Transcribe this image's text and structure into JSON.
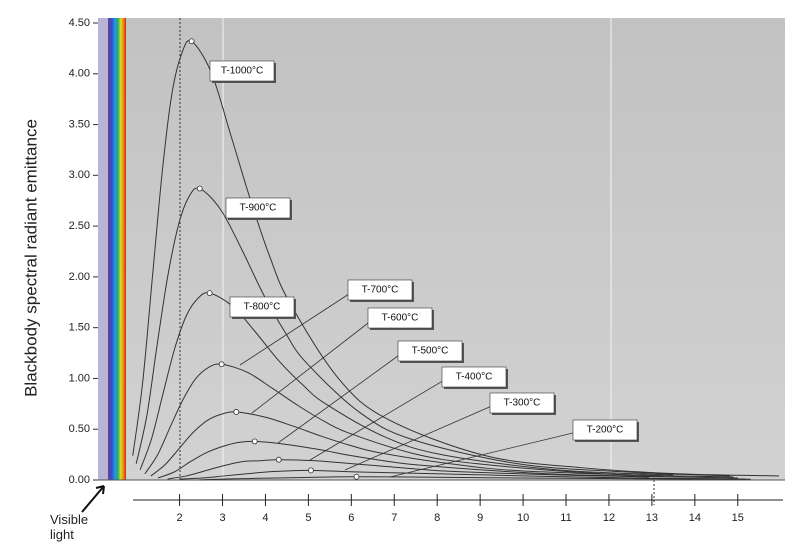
{
  "chart_data": {
    "type": "line",
    "ylabel": "Blackbody spectral radiant emittance",
    "annotation": "Visible light",
    "xlim": [
      0.1,
      16.1
    ],
    "ylim": [
      0,
      4.5
    ],
    "xticks": [
      2,
      3,
      4,
      5,
      6,
      7,
      8,
      9,
      10,
      11,
      12,
      13,
      14,
      15
    ],
    "yticks": [
      {
        "value": 0,
        "label": "0.00"
      },
      {
        "value": 0.5,
        "label": "0.50"
      },
      {
        "value": 1,
        "label": "1.00"
      },
      {
        "value": 1.5,
        "label": "1.50"
      },
      {
        "value": 2,
        "label": "2.00"
      },
      {
        "value": 2.5,
        "label": "2.50"
      },
      {
        "value": 3,
        "label": "3.00"
      },
      {
        "value": 3.5,
        "label": "3.50"
      },
      {
        "value": 4,
        "label": "4.00"
      },
      {
        "value": 4.5,
        "label": "4.50"
      }
    ],
    "color": "#333333",
    "series": [
      {
        "name": "T-1000°C",
        "x": [
          0.91,
          1.14,
          1.37,
          1.6,
          1.82,
          2.05,
          2.28,
          2.74,
          3.19,
          3.65,
          4.1,
          4.56,
          5.7,
          6.84,
          9.12,
          11.4,
          13.68,
          15.96
        ],
        "values": [
          0.24,
          0.96,
          2.01,
          3.05,
          3.8,
          4.2,
          4.32,
          4.01,
          3.4,
          2.76,
          2.2,
          1.75,
          1.0,
          0.6,
          0.24,
          0.12,
          0.06,
          0.04
        ]
      },
      {
        "name": "T-900°C",
        "x": [
          0.99,
          1.24,
          1.48,
          1.73,
          1.98,
          2.22,
          2.47,
          2.96,
          3.46,
          3.95,
          4.45,
          4.94,
          6.18,
          7.41,
          9.88,
          12.35,
          14.82
        ],
        "values": [
          0.16,
          0.64,
          1.34,
          2.02,
          2.52,
          2.79,
          2.87,
          2.66,
          2.26,
          1.83,
          1.46,
          1.16,
          0.67,
          0.4,
          0.16,
          0.08,
          0.04
        ]
      },
      {
        "name": "T-800°C",
        "x": [
          1.08,
          1.35,
          1.62,
          1.89,
          2.16,
          2.43,
          2.7,
          3.24,
          3.78,
          4.32,
          4.86,
          5.4,
          6.75,
          8.1,
          10.8,
          13.5
        ],
        "values": [
          0.1,
          0.41,
          0.86,
          1.3,
          1.62,
          1.79,
          1.84,
          1.71,
          1.45,
          1.17,
          0.94,
          0.75,
          0.43,
          0.25,
          0.1,
          0.05
        ]
      },
      {
        "name": "T-700°C",
        "x": [
          1.19,
          1.49,
          1.79,
          2.09,
          2.38,
          2.68,
          2.98,
          3.58,
          4.17,
          4.77,
          5.36,
          5.96,
          7.45,
          8.94,
          11.92,
          14.9
        ],
        "values": [
          0.06,
          0.25,
          0.53,
          0.8,
          1.0,
          1.11,
          1.14,
          1.06,
          0.9,
          0.73,
          0.58,
          0.46,
          0.26,
          0.16,
          0.06,
          0.03
        ]
      },
      {
        "name": "T-600°C",
        "x": [
          1.33,
          1.66,
          1.99,
          2.32,
          2.66,
          2.99,
          3.32,
          3.98,
          4.65,
          5.31,
          5.98,
          6.64,
          8.3,
          9.96,
          13.28
        ],
        "values": [
          0.04,
          0.15,
          0.31,
          0.47,
          0.59,
          0.65,
          0.67,
          0.62,
          0.53,
          0.43,
          0.34,
          0.27,
          0.16,
          0.09,
          0.04
        ]
      },
      {
        "name": "T-500°C",
        "x": [
          1.5,
          1.88,
          2.25,
          2.63,
          3.0,
          3.38,
          3.75,
          4.5,
          5.25,
          6.0,
          6.75,
          7.5,
          9.38,
          11.25,
          15.0
        ],
        "values": [
          0.02,
          0.08,
          0.18,
          0.27,
          0.33,
          0.37,
          0.38,
          0.35,
          0.3,
          0.24,
          0.19,
          0.15,
          0.09,
          0.05,
          0.02
        ]
      },
      {
        "name": "T-400°C",
        "x": [
          1.72,
          2.16,
          2.59,
          3.02,
          3.45,
          3.88,
          4.31,
          5.17,
          6.03,
          6.9,
          7.76,
          8.62,
          10.78,
          12.93
        ],
        "values": [
          0.01,
          0.04,
          0.09,
          0.14,
          0.18,
          0.19,
          0.2,
          0.19,
          0.16,
          0.13,
          0.1,
          0.08,
          0.05,
          0.03
        ]
      },
      {
        "name": "T-300°C",
        "x": [
          2.02,
          2.53,
          3.04,
          3.54,
          4.05,
          4.55,
          5.06,
          6.07,
          7.08,
          8.1,
          9.11,
          10.12,
          12.65,
          15.18
        ],
        "values": [
          0.01,
          0.02,
          0.04,
          0.06,
          0.08,
          0.09,
          0.095,
          0.08,
          0.07,
          0.06,
          0.05,
          0.04,
          0.02,
          0.01
        ]
      },
      {
        "name": "T-200°C",
        "x": [
          2.45,
          3.06,
          3.67,
          4.28,
          4.9,
          5.51,
          6.12,
          7.34,
          8.57,
          9.79,
          11.02,
          12.24,
          15.3
        ],
        "values": [
          0.0,
          0.01,
          0.015,
          0.02,
          0.025,
          0.03,
          0.032,
          0.03,
          0.025,
          0.02,
          0.017,
          0.013,
          0.007
        ]
      }
    ]
  }
}
